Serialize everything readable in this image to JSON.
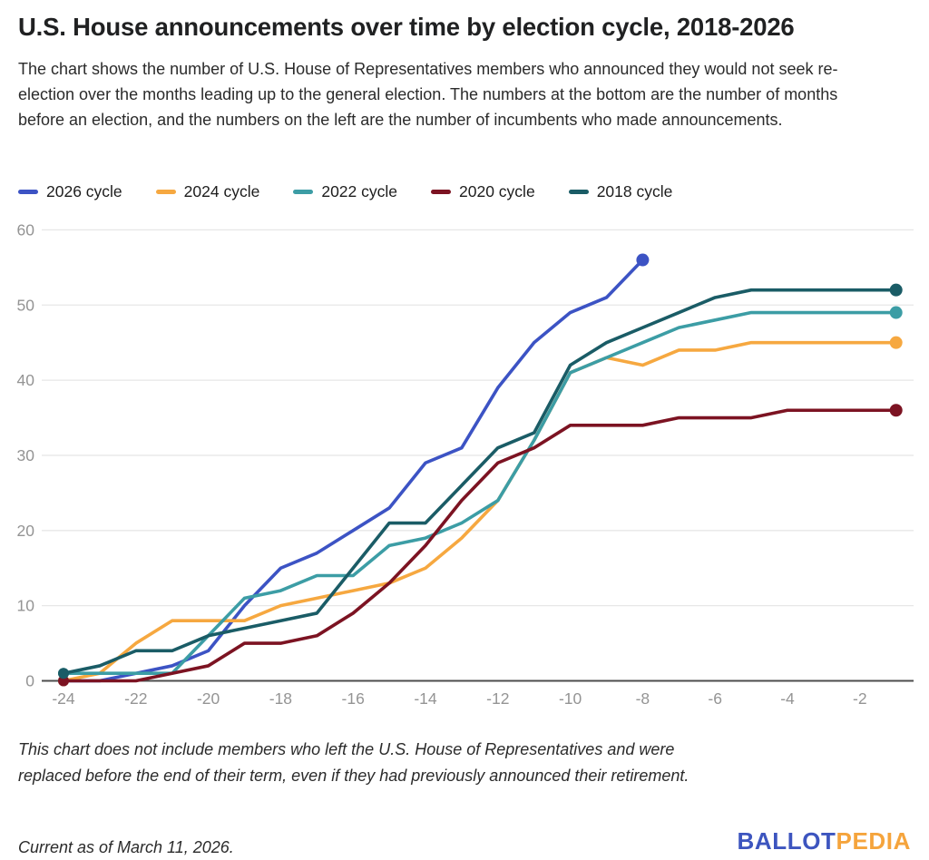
{
  "header": {
    "title": "U.S. House announcements over time by election cycle, 2018-2026",
    "description": "The chart shows the number of U.S. House of Representatives members who announced they would not seek re-election over the months leading up to the general election. The numbers at the bottom are the number of months before an election, and the numbers on the left are the number of incumbents who made announcements."
  },
  "chart_data": {
    "type": "line",
    "title": "U.S. House announcements over time by election cycle, 2018-2026",
    "xlabel": "",
    "ylabel": "",
    "xlim": [
      -24,
      -0.5
    ],
    "ylim": [
      0,
      60
    ],
    "x_ticks": [
      -24,
      -22,
      -20,
      -18,
      -16,
      -14,
      -12,
      -10,
      -8,
      -6,
      -4,
      -2
    ],
    "y_ticks": [
      0,
      10,
      20,
      30,
      40,
      50,
      60
    ],
    "grid": "horizontal",
    "legend_position": "top",
    "months": [
      -24,
      -23,
      -22,
      -21,
      -20,
      -19,
      -18,
      -17,
      -16,
      -15,
      -14,
      -13,
      -12,
      -11,
      -10,
      -9,
      -8,
      -7,
      -6,
      -5,
      -4,
      -3,
      -2,
      -1
    ],
    "series": [
      {
        "name": "2026 cycle",
        "color": "#3C53C4",
        "x_start": -24,
        "values": [
          0,
          0,
          1,
          2,
          4,
          10,
          15,
          17,
          20,
          23,
          29,
          31,
          39,
          45,
          49,
          51,
          56
        ]
      },
      {
        "name": "2024 cycle",
        "color": "#F6A840",
        "x_start": -24,
        "values": [
          0,
          1,
          5,
          8,
          8,
          8,
          10,
          11,
          12,
          13,
          15,
          19,
          24,
          32,
          41,
          43,
          42,
          44,
          44,
          45,
          45,
          45,
          45,
          45
        ]
      },
      {
        "name": "2022 cycle",
        "color": "#3C9DA5",
        "x_start": -24,
        "values": [
          1,
          1,
          1,
          1,
          6,
          11,
          12,
          14,
          14,
          18,
          19,
          21,
          24,
          32,
          41,
          43,
          45,
          47,
          48,
          49,
          49,
          49,
          49,
          49
        ]
      },
      {
        "name": "2020 cycle",
        "color": "#7C1322",
        "x_start": -24,
        "values": [
          0,
          0,
          0,
          1,
          2,
          5,
          5,
          6,
          9,
          13,
          18,
          24,
          29,
          31,
          34,
          34,
          34,
          35,
          35,
          35,
          36,
          36,
          36,
          36
        ]
      },
      {
        "name": "2018 cycle",
        "color": "#1A5C66",
        "x_start": -24,
        "values": [
          1,
          2,
          4,
          4,
          6,
          7,
          8,
          9,
          15,
          21,
          21,
          26,
          31,
          33,
          42,
          45,
          47,
          49,
          51,
          52,
          52,
          52,
          52,
          52
        ]
      }
    ],
    "final_values": {
      "2026 cycle": 56,
      "2024 cycle": 45,
      "2022 cycle": 49,
      "2020 cycle": 36,
      "2018 cycle": 52
    }
  },
  "footer": {
    "note": "This chart does not include members who left the U.S. House of Representatives and were replaced before the end of their term, even if they had previously announced their retirement.",
    "current_as_of": "Current as of March 11, 2026.",
    "logo": {
      "part1": "BALLOT",
      "part2": "PEDIA",
      "part1_color": "#3D55BF",
      "part2_color": "#F5A43C"
    }
  },
  "style": {
    "axis_color": "#4d4d4d",
    "gridline_color": "#e7e7e7",
    "tick_label_color": "#949494"
  }
}
